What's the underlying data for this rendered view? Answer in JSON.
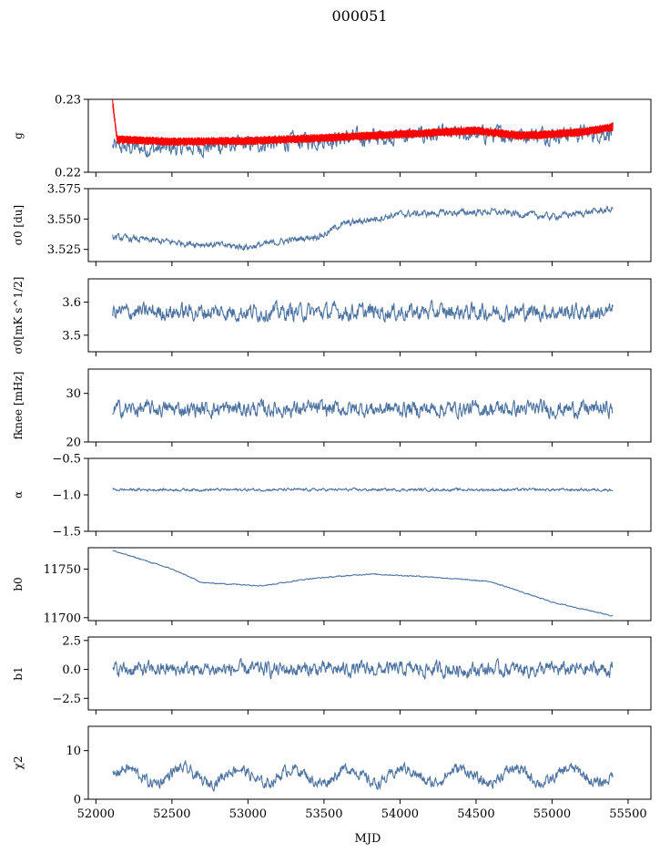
{
  "chart_data": {
    "type": "line",
    "title": "000051",
    "xlabel": "MJD",
    "xlim": [
      51950,
      55650
    ],
    "xticks": [
      52000,
      52500,
      53000,
      53500,
      54000,
      54500,
      55000,
      55500
    ],
    "xtick_labels": [
      "52000",
      "52500",
      "53000",
      "53500",
      "54000",
      "54500",
      "55000",
      "55500"
    ],
    "colors": {
      "series": "#4c72a0",
      "model": "#ff0000"
    },
    "panels": [
      {
        "id": "g",
        "ylabel": "g",
        "ylim": [
          0.22,
          0.23
        ],
        "yticks": [
          0.22,
          0.23
        ],
        "ytick_labels": [
          "0.22",
          "0.23"
        ],
        "series": [
          {
            "name": "",
            "color": "#4c72a0",
            "x_range": [
              52110,
              55400
            ],
            "level": 0.2248,
            "noise": 0.0013,
            "breakpoints": [
              [
                52110,
                0.2235
              ],
              [
                52400,
                0.2232
              ],
              [
                53000,
                0.2238
              ],
              [
                53500,
                0.2245
              ],
              [
                54000,
                0.225
              ],
              [
                54500,
                0.2252
              ],
              [
                55000,
                0.2252
              ],
              [
                55400,
                0.2255
              ]
            ]
          },
          {
            "name": "",
            "color": "#ff0000",
            "x_range": [
              52110,
              55400
            ],
            "band": 0.0006,
            "breakpoints": [
              [
                52110,
                0.2295
              ],
              [
                52140,
                0.2245
              ],
              [
                52500,
                0.2242
              ],
              [
                53000,
                0.2243
              ],
              [
                53500,
                0.2247
              ],
              [
                54000,
                0.2252
              ],
              [
                54500,
                0.2257
              ],
              [
                54800,
                0.225
              ],
              [
                55200,
                0.2255
              ],
              [
                55400,
                0.2262
              ]
            ]
          }
        ]
      },
      {
        "id": "sigma0_du",
        "ylabel": "σ0 [du]",
        "ylim": [
          3.515,
          3.575
        ],
        "yticks": [
          3.525,
          3.55,
          3.575
        ],
        "ytick_labels": [
          "3.525",
          "3.550",
          "3.575"
        ],
        "series": [
          {
            "name": "",
            "color": "#4c72a0",
            "x_range": [
              52110,
              55400
            ],
            "noise": 0.003,
            "breakpoints": [
              [
                52110,
                3.535
              ],
              [
                52500,
                3.531
              ],
              [
                53000,
                3.527
              ],
              [
                53500,
                3.537
              ],
              [
                53600,
                3.545
              ],
              [
                54000,
                3.554
              ],
              [
                54600,
                3.556
              ],
              [
                55000,
                3.552
              ],
              [
                55400,
                3.558
              ]
            ]
          }
        ]
      },
      {
        "id": "sigma0_mK",
        "ylabel": "σ0[mK s^1/2]",
        "ylim": [
          3.45,
          3.67
        ],
        "yticks": [
          3.5,
          3.6
        ],
        "ytick_labels": [
          "3.5",
          "3.6"
        ],
        "series": [
          {
            "name": "",
            "color": "#4c72a0",
            "x_range": [
              52110,
              55400
            ],
            "level": 3.57,
            "noise": 0.028
          }
        ]
      },
      {
        "id": "fknee",
        "ylabel": "fknee [mHz]",
        "ylim": [
          20,
          35
        ],
        "yticks": [
          20,
          30
        ],
        "ytick_labels": [
          "20",
          "30"
        ],
        "series": [
          {
            "name": "",
            "color": "#4c72a0",
            "x_range": [
              52110,
              55400
            ],
            "level": 26.8,
            "noise": 1.8
          }
        ]
      },
      {
        "id": "alpha",
        "ylabel": "α",
        "ylim": [
          -1.5,
          -0.5
        ],
        "yticks": [
          -1.5,
          -1.0,
          -0.5
        ],
        "ytick_labels": [
          "−1.5",
          "−1.0",
          "−0.5"
        ],
        "series": [
          {
            "name": "",
            "color": "#4c72a0",
            "x_range": [
              52110,
              55400
            ],
            "level": -0.93,
            "noise": 0.02
          }
        ]
      },
      {
        "id": "b0",
        "ylabel": "b0",
        "ylim": [
          11697,
          11772
        ],
        "yticks": [
          11700,
          11750
        ],
        "ytick_labels": [
          "11700",
          "11750"
        ],
        "series": [
          {
            "name": "",
            "color": "#4c72a0",
            "x_range": [
              52110,
              55400
            ],
            "noise": 0.6,
            "breakpoints": [
              [
                52110,
                11769
              ],
              [
                52300,
                11760
              ],
              [
                52500,
                11750
              ],
              [
                52700,
                11736
              ],
              [
                53100,
                11733
              ],
              [
                53400,
                11740
              ],
              [
                53800,
                11745
              ],
              [
                54200,
                11742
              ],
              [
                54600,
                11737
              ],
              [
                55000,
                11716
              ],
              [
                55400,
                11702
              ]
            ]
          }
        ]
      },
      {
        "id": "b1",
        "ylabel": "b1",
        "ylim": [
          -3.5,
          2.8
        ],
        "yticks": [
          -2.5,
          0.0,
          2.5
        ],
        "ytick_labels": [
          "−2.5",
          "0.0",
          "2.5"
        ],
        "series": [
          {
            "name": "",
            "color": "#4c72a0",
            "x_range": [
              52110,
              55400
            ],
            "level": 0.0,
            "noise": 0.7
          }
        ]
      },
      {
        "id": "chi2",
        "ylabel": "χ2",
        "ylim": [
          0,
          15
        ],
        "yticks": [
          0,
          10
        ],
        "ytick_labels": [
          "0",
          "10"
        ],
        "series": [
          {
            "name": "",
            "color": "#4c72a0",
            "x_range": [
              52110,
              55400
            ],
            "level": 4.8,
            "noise": 1.3,
            "period": 365,
            "amplitude": 1.5
          }
        ]
      }
    ]
  }
}
